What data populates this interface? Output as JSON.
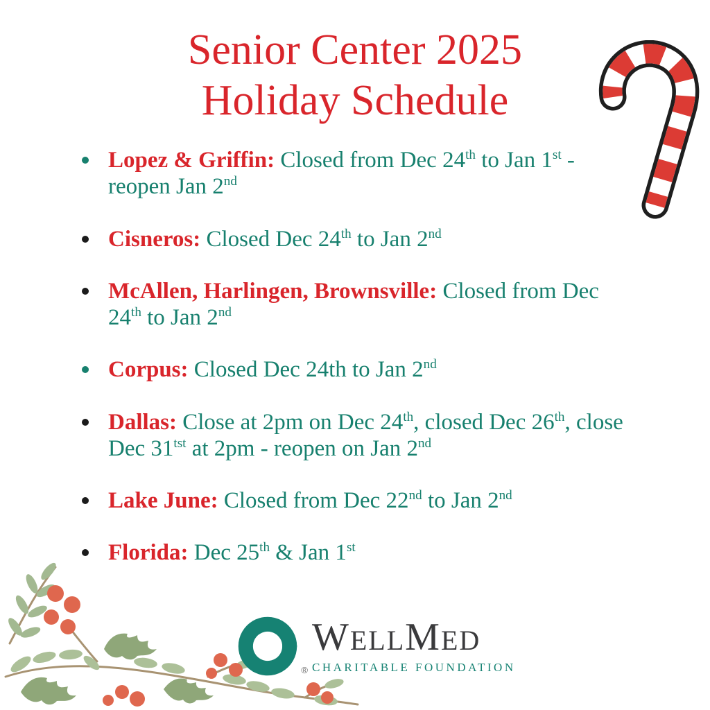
{
  "title": {
    "line1": "Senior Center 2025",
    "line2": "Holiday Schedule"
  },
  "schedule": {
    "items": [
      {
        "label": "Lopez & Griffin:",
        "bullet_color": "teal",
        "segments": [
          {
            "t": "Closed from Dec 24"
          },
          {
            "t": "th",
            "sup": true
          },
          {
            "t": " to Jan 1"
          },
          {
            "t": "st",
            "sup": true
          },
          {
            "t": " - reopen Jan 2"
          },
          {
            "t": "nd",
            "sup": true
          }
        ]
      },
      {
        "label": "Cisneros:",
        "bullet_color": "black",
        "segments": [
          {
            "t": "Closed Dec 24"
          },
          {
            "t": "th",
            "sup": true
          },
          {
            "t": " to Jan 2"
          },
          {
            "t": "nd",
            "sup": true
          }
        ]
      },
      {
        "label": "McAllen, Harlingen, Brownsville:",
        "bullet_color": "black",
        "segments": [
          {
            "t": "Closed from Dec 24"
          },
          {
            "t": "th",
            "sup": true
          },
          {
            "t": " to Jan 2"
          },
          {
            "t": "nd",
            "sup": true
          }
        ]
      },
      {
        "label": "Corpus:",
        "bullet_color": "teal",
        "segments": [
          {
            "t": "Closed Dec 24th to Jan 2"
          },
          {
            "t": "nd",
            "sup": true
          }
        ]
      },
      {
        "label": "Dallas:",
        "bullet_color": "black",
        "segments": [
          {
            "t": "Close at 2pm on Dec 24"
          },
          {
            "t": "th",
            "sup": true
          },
          {
            "t": ", closed Dec 26"
          },
          {
            "t": "th",
            "sup": true
          },
          {
            "t": ", close Dec 31"
          },
          {
            "t": "tst",
            "sup": true
          },
          {
            "t": " at 2pm - reopen on Jan 2"
          },
          {
            "t": "nd",
            "sup": true
          }
        ]
      },
      {
        "label": "Lake June:",
        "bullet_color": "black",
        "segments": [
          {
            "t": "Closed from Dec 22"
          },
          {
            "t": "nd",
            "sup": true
          },
          {
            "t": " to Jan 2"
          },
          {
            "t": "nd",
            "sup": true
          }
        ]
      },
      {
        "label": "Florida:",
        "bullet_color": "black",
        "segments": [
          {
            "t": "Dec 25"
          },
          {
            "t": "th",
            "sup": true
          },
          {
            "t": " & Jan 1"
          },
          {
            "t": "st",
            "sup": true
          }
        ]
      }
    ]
  },
  "footer": {
    "wordmark_parts": [
      {
        "t": "W",
        "big": true
      },
      {
        "t": "ELL"
      },
      {
        "t": "M",
        "big": true
      },
      {
        "t": "ED"
      }
    ],
    "registered_mark": "®",
    "tagline": "CHARITABLE FOUNDATION"
  },
  "icons": {
    "candy_cane": "candy-cane-illustration",
    "garland": "holly-garland-illustration",
    "logo_swirl": "wellmed-swirl-logo"
  },
  "colors": {
    "red": "#d9252b",
    "teal": "#17806e",
    "ink": "#1b1b1b",
    "logo_teal": "#168273",
    "wordmark": "#3a3a3c"
  }
}
